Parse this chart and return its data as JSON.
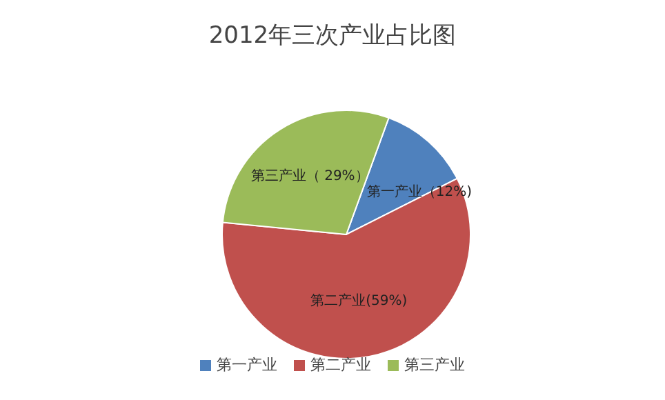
{
  "chart_data": {
    "type": "pie",
    "title": "2012年三次产业占比图",
    "categories": [
      "第一产业",
      "第二产业",
      "第三产业"
    ],
    "values": [
      12,
      59,
      29
    ],
    "colors": [
      "#4f81bd",
      "#c0504d",
      "#9bbb59"
    ],
    "value_labels": [
      "第一产业（12%)",
      "第二产业(59%)",
      "第三产业（ 29%）"
    ],
    "legend": "bottom"
  }
}
